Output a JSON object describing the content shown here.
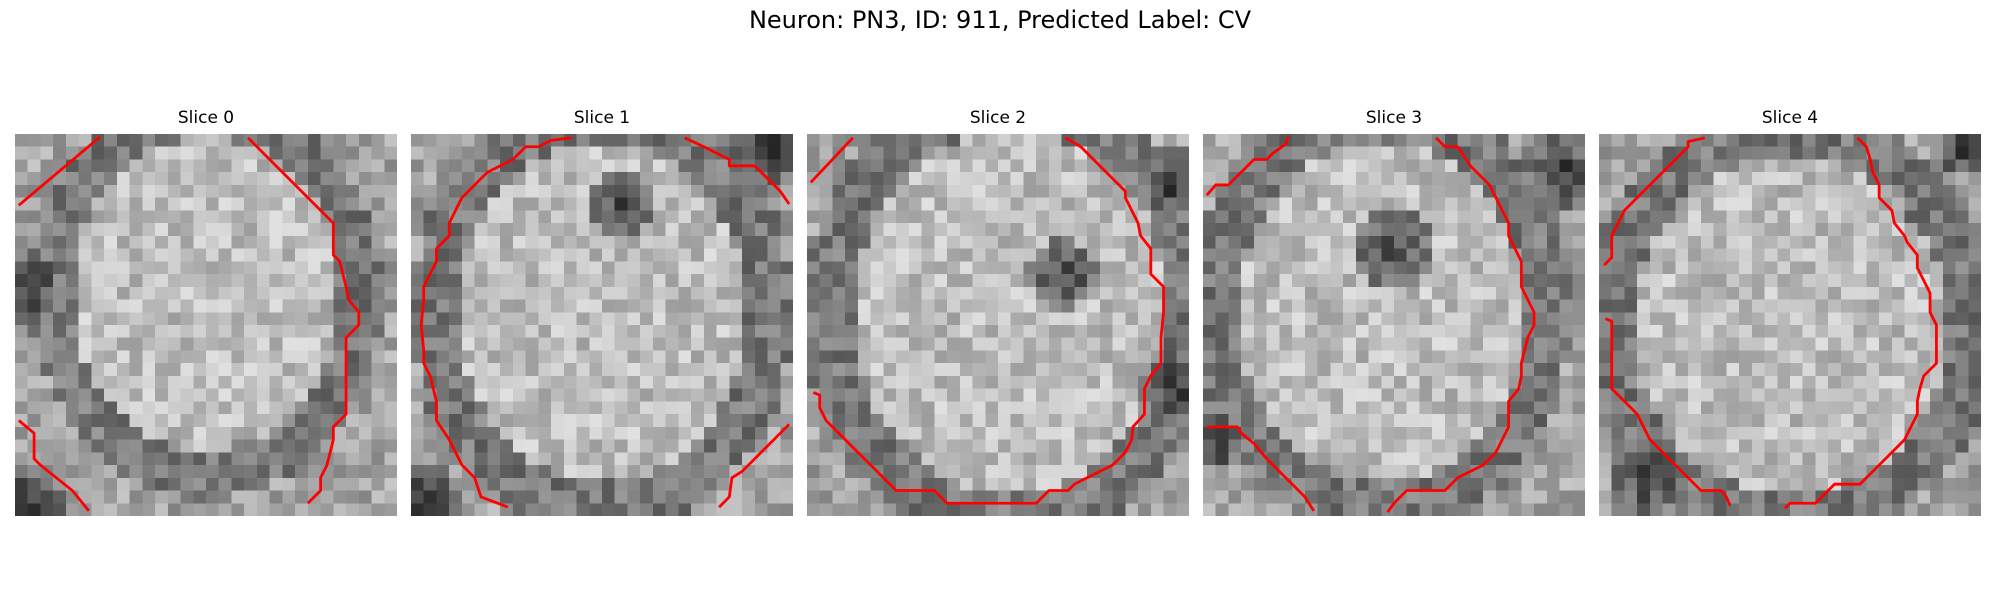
{
  "figure": {
    "title": "Neuron: PN3, ID: 911, Predicted Label: CV"
  },
  "slices": [
    {
      "label": "Slice 0",
      "seed": 11
    },
    {
      "label": "Slice 1",
      "seed": 23
    },
    {
      "label": "Slice 2",
      "seed": 37
    },
    {
      "label": "Slice 3",
      "seed": 41
    },
    {
      "label": "Slice 4",
      "seed": 59
    }
  ],
  "colors": {
    "contour": "#ff0000"
  }
}
